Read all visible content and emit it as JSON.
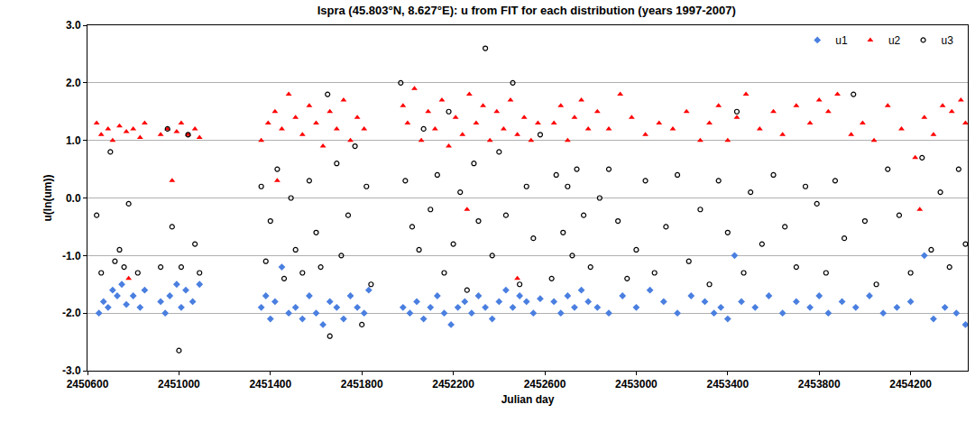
{
  "chart_data": {
    "type": "scatter",
    "title": "Ispra (45.803°N, 8.627°E): u from FIT for each distribution (years 1997-2007)",
    "x_label": "Julian day",
    "y_label": "u(ln(um))",
    "xlim": [
      2450600,
      2454450
    ],
    "xticks": [
      2450600,
      2451000,
      2451400,
      2451800,
      2452200,
      2452600,
      2453000,
      2453400,
      2453800,
      2454200
    ],
    "ylim": [
      -3,
      3
    ],
    "yticks": [
      {
        "value": -3,
        "label": "-3.0"
      },
      {
        "value": -2,
        "label": "-2.0"
      },
      {
        "value": -1,
        "label": "-1.0"
      },
      {
        "value": 0,
        "label": "0.0"
      },
      {
        "value": 1,
        "label": "1.0"
      },
      {
        "value": 2,
        "label": "2.0"
      },
      {
        "value": 3,
        "label": "3.0"
      }
    ],
    "grid": "y",
    "legend": "top right",
    "series": [
      {
        "name": "u1",
        "color": "#4a7fe0",
        "marker": "diamond",
        "x": [
          2450650,
          2450670,
          2450690,
          2450710,
          2450730,
          2450750,
          2450770,
          2450800,
          2450830,
          2450850,
          2450920,
          2450940,
          2450960,
          2450990,
          2451010,
          2451030,
          2451060,
          2451090,
          2451360,
          2451380,
          2451400,
          2451420,
          2451450,
          2451480,
          2451510,
          2451540,
          2451570,
          2451600,
          2451630,
          2451660,
          2451690,
          2451720,
          2451750,
          2451780,
          2451810,
          2451830,
          2451980,
          2452010,
          2452040,
          2452070,
          2452100,
          2452130,
          2452160,
          2452190,
          2452220,
          2452250,
          2452280,
          2452310,
          2452340,
          2452370,
          2452400,
          2452430,
          2452460,
          2452490,
          2452520,
          2452550,
          2452580,
          2452640,
          2452670,
          2452700,
          2452730,
          2452760,
          2452790,
          2452830,
          2452880,
          2452940,
          2453000,
          2453060,
          2453120,
          2453180,
          2453240,
          2453300,
          2453340,
          2453370,
          2453400,
          2453430,
          2453460,
          2453520,
          2453580,
          2453640,
          2453700,
          2453760,
          2453800,
          2453840,
          2453900,
          2453960,
          2454020,
          2454080,
          2454140,
          2454200,
          2454260,
          2454300,
          2454350,
          2454400,
          2454440
        ],
        "values": [
          -2.0,
          -1.8,
          -1.9,
          -1.6,
          -1.7,
          -1.5,
          -1.85,
          -1.7,
          -1.9,
          -1.6,
          -1.8,
          -2.0,
          -1.7,
          -1.5,
          -1.9,
          -1.6,
          -1.8,
          -1.5,
          -1.9,
          -1.7,
          -2.1,
          -1.8,
          -1.2,
          -2.0,
          -1.9,
          -2.1,
          -1.7,
          -2.0,
          -2.2,
          -1.8,
          -1.9,
          -2.1,
          -1.7,
          -1.9,
          -2.0,
          -1.6,
          -1.9,
          -2.0,
          -1.8,
          -2.1,
          -1.9,
          -1.7,
          -2.0,
          -2.2,
          -1.9,
          -1.8,
          -2.0,
          -1.7,
          -1.9,
          -2.1,
          -1.8,
          -1.6,
          -1.9,
          -1.7,
          -1.8,
          -2.0,
          -1.75,
          -1.8,
          -2.0,
          -1.7,
          -1.9,
          -1.6,
          -1.8,
          -1.9,
          -2.0,
          -1.7,
          -1.9,
          -1.6,
          -1.8,
          -2.0,
          -1.7,
          -1.8,
          -2.0,
          -1.9,
          -2.1,
          -1.0,
          -1.8,
          -1.9,
          -1.7,
          -2.0,
          -1.8,
          -1.9,
          -1.7,
          -2.0,
          -1.8,
          -1.9,
          -1.7,
          -2.0,
          -1.9,
          -1.8,
          -1.0,
          -2.1,
          -1.9,
          -2.0,
          -2.2
        ]
      },
      {
        "name": "u2",
        "color": "#ff0000",
        "marker": "triangle-up",
        "x": [
          2450640,
          2450660,
          2450690,
          2450710,
          2450740,
          2450770,
          2450800,
          2450830,
          2450850,
          2450920,
          2450950,
          2450970,
          2450990,
          2451010,
          2451040,
          2451070,
          2451090,
          2450780,
          2451360,
          2451390,
          2451420,
          2451450,
          2451480,
          2451510,
          2451540,
          2451570,
          2451600,
          2451630,
          2451660,
          2451690,
          2451720,
          2451750,
          2451780,
          2451810,
          2451430,
          2451980,
          2452000,
          2452030,
          2452060,
          2452090,
          2452120,
          2452150,
          2452180,
          2452210,
          2452240,
          2452270,
          2452300,
          2452330,
          2452360,
          2452390,
          2452420,
          2452450,
          2452480,
          2452510,
          2452540,
          2452570,
          2452260,
          2452480,
          2452640,
          2452670,
          2452700,
          2452730,
          2452760,
          2452790,
          2452830,
          2452880,
          2452930,
          2452980,
          2453040,
          2453100,
          2453160,
          2453220,
          2453280,
          2453320,
          2453360,
          2453400,
          2453440,
          2453480,
          2453540,
          2453600,
          2453640,
          2453700,
          2453760,
          2453800,
          2453840,
          2453880,
          2453940,
          2453990,
          2454040,
          2454100,
          2454160,
          2454220,
          2454260,
          2454300,
          2454340,
          2454380,
          2454420,
          2454440,
          2454240
        ],
        "values": [
          1.3,
          1.1,
          1.2,
          1.0,
          1.25,
          1.15,
          1.2,
          1.05,
          1.3,
          1.1,
          1.2,
          0.3,
          1.15,
          1.3,
          1.1,
          1.2,
          1.05,
          -1.4,
          1.0,
          1.3,
          1.5,
          1.2,
          1.8,
          1.4,
          1.1,
          1.6,
          1.3,
          0.9,
          1.5,
          1.2,
          1.7,
          1.0,
          1.4,
          1.2,
          0.3,
          1.6,
          1.3,
          1.9,
          1.0,
          1.5,
          1.2,
          1.7,
          0.9,
          1.4,
          1.1,
          1.8,
          1.3,
          1.6,
          1.0,
          1.5,
          1.2,
          1.7,
          1.1,
          1.4,
          1.0,
          1.3,
          -0.2,
          -1.4,
          1.3,
          1.6,
          1.0,
          1.4,
          1.7,
          1.2,
          1.5,
          1.2,
          1.8,
          1.4,
          1.1,
          1.3,
          1.2,
          1.5,
          1.0,
          1.3,
          1.6,
          1.0,
          1.4,
          1.8,
          1.2,
          1.5,
          1.1,
          1.6,
          1.3,
          1.7,
          1.5,
          1.8,
          1.1,
          1.3,
          1.0,
          1.6,
          1.2,
          0.7,
          1.4,
          1.1,
          1.6,
          1.5,
          1.7,
          1.3,
          -0.2
        ]
      },
      {
        "name": "u3",
        "color": "#000000",
        "marker": "circle-open",
        "x": [
          2450640,
          2450660,
          2450700,
          2450720,
          2450740,
          2450760,
          2450780,
          2450820,
          2450920,
          2450950,
          2450970,
          2451000,
          2451010,
          2451040,
          2451070,
          2451090,
          2451360,
          2451380,
          2451400,
          2451430,
          2451460,
          2451490,
          2451510,
          2451540,
          2451570,
          2451600,
          2451620,
          2451650,
          2451660,
          2451690,
          2451710,
          2451740,
          2451770,
          2451800,
          2451820,
          2451840,
          2451970,
          2451990,
          2452020,
          2452050,
          2452070,
          2452100,
          2452130,
          2452160,
          2452180,
          2452200,
          2452230,
          2452260,
          2452290,
          2452310,
          2452340,
          2452370,
          2452400,
          2452430,
          2452460,
          2452490,
          2452520,
          2452550,
          2452580,
          2452630,
          2452650,
          2452680,
          2452700,
          2452720,
          2452740,
          2452770,
          2452800,
          2452840,
          2452880,
          2452920,
          2452960,
          2453000,
          2453040,
          2453080,
          2453130,
          2453180,
          2453230,
          2453280,
          2453320,
          2453360,
          2453400,
          2453440,
          2453470,
          2453500,
          2453550,
          2453600,
          2453650,
          2453700,
          2453740,
          2453790,
          2453830,
          2453870,
          2453910,
          2453950,
          2454000,
          2454050,
          2454100,
          2454150,
          2454200,
          2454250,
          2454290,
          2454330,
          2454370,
          2454410,
          2454440
        ],
        "values": [
          -0.3,
          -1.3,
          0.8,
          -1.1,
          -0.9,
          -1.2,
          -0.1,
          -1.3,
          -1.2,
          1.2,
          -0.5,
          -2.65,
          -1.2,
          1.1,
          -0.8,
          -1.3,
          0.2,
          -1.1,
          -0.4,
          0.5,
          -1.4,
          0.0,
          -0.9,
          -1.3,
          0.3,
          -0.6,
          -1.2,
          1.8,
          -2.4,
          0.6,
          -1.0,
          -0.3,
          0.9,
          -2.2,
          0.2,
          -1.5,
          2.0,
          0.3,
          -0.5,
          -0.9,
          1.2,
          -0.2,
          0.4,
          -1.3,
          1.5,
          -0.8,
          0.1,
          -1.6,
          0.6,
          -0.4,
          2.6,
          -1.0,
          0.8,
          -0.3,
          2.0,
          -1.5,
          0.2,
          -0.7,
          1.1,
          -1.4,
          0.4,
          -0.6,
          0.2,
          -1.0,
          0.5,
          -0.3,
          -1.2,
          0.0,
          0.5,
          -0.4,
          -1.4,
          -0.9,
          0.3,
          -1.3,
          -0.5,
          0.4,
          -1.1,
          -0.2,
          -1.5,
          0.3,
          -0.6,
          1.5,
          -1.3,
          0.1,
          -0.8,
          0.4,
          -0.5,
          -1.2,
          0.2,
          -0.1,
          -1.3,
          0.3,
          -0.7,
          1.8,
          -0.4,
          -1.5,
          0.5,
          -0.3,
          -1.3,
          0.7,
          -0.9,
          0.1,
          -1.2,
          0.5,
          -0.8
        ]
      }
    ]
  }
}
